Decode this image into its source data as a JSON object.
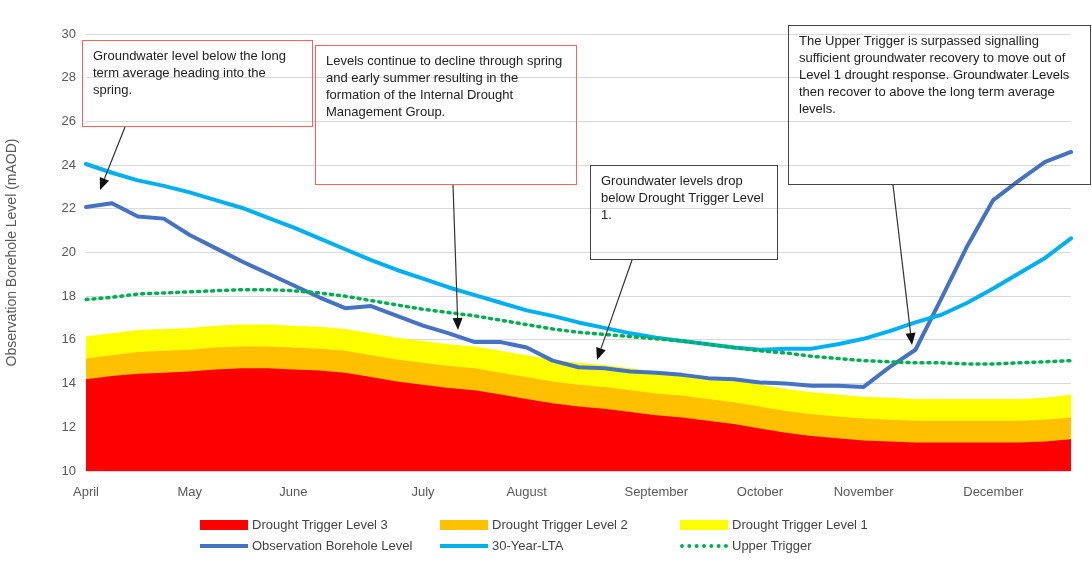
{
  "chart_data": {
    "type": "line",
    "ylabel": "Observation Borehole Level (mAOD)",
    "categories": [
      "April",
      null,
      null,
      null,
      "May",
      null,
      null,
      null,
      "June",
      null,
      null,
      null,
      null,
      "July",
      null,
      null,
      null,
      "August",
      null,
      null,
      null,
      null,
      "September",
      null,
      null,
      null,
      "October",
      null,
      null,
      null,
      "November",
      null,
      null,
      null,
      null,
      "December",
      null,
      null,
      null
    ],
    "ylim": [
      10,
      30
    ],
    "yticks": [
      10,
      12,
      14,
      16,
      18,
      20,
      22,
      24,
      26,
      28,
      30
    ],
    "grid": "y",
    "legend": "bottom",
    "marker": "none",
    "series": [
      {
        "name": "Drought Trigger Level 3",
        "type": "area",
        "color": "#ff0000",
        "values": [
          14.2,
          14.35,
          14.45,
          14.5,
          14.55,
          14.65,
          14.7,
          14.7,
          14.65,
          14.6,
          14.5,
          14.3,
          14.1,
          13.95,
          13.8,
          13.7,
          13.5,
          13.3,
          13.1,
          12.95,
          12.85,
          12.7,
          12.55,
          12.45,
          12.3,
          12.15,
          11.95,
          11.75,
          11.6,
          11.5,
          11.4,
          11.35,
          11.3,
          11.3,
          11.3,
          11.3,
          11.3,
          11.35,
          11.45
        ]
      },
      {
        "name": "Drought Trigger Level 2",
        "type": "area",
        "color": "#ffc000",
        "values": [
          15.15,
          15.3,
          15.45,
          15.5,
          15.55,
          15.65,
          15.7,
          15.7,
          15.65,
          15.6,
          15.5,
          15.3,
          15.1,
          14.95,
          14.8,
          14.7,
          14.5,
          14.3,
          14.1,
          13.95,
          13.85,
          13.7,
          13.55,
          13.45,
          13.3,
          13.15,
          12.95,
          12.75,
          12.6,
          12.5,
          12.4,
          12.35,
          12.3,
          12.3,
          12.3,
          12.3,
          12.3,
          12.35,
          12.45
        ]
      },
      {
        "name": "Drought Trigger Level 1",
        "type": "area",
        "color": "#ffff00",
        "values": [
          16.15,
          16.3,
          16.45,
          16.5,
          16.55,
          16.65,
          16.7,
          16.7,
          16.65,
          16.6,
          16.5,
          16.3,
          16.1,
          15.95,
          15.8,
          15.7,
          15.5,
          15.3,
          15.1,
          14.95,
          14.85,
          14.7,
          14.55,
          14.45,
          14.3,
          14.15,
          13.95,
          13.75,
          13.6,
          13.5,
          13.4,
          13.35,
          13.3,
          13.3,
          13.3,
          13.3,
          13.3,
          13.35,
          13.5
        ]
      },
      {
        "name": "Observation Borehole Level",
        "type": "line",
        "color": "#4472c4",
        "values": [
          22.08,
          22.25,
          21.65,
          21.55,
          20.8,
          20.2,
          19.6,
          19.05,
          18.5,
          17.95,
          17.45,
          17.55,
          17.1,
          16.65,
          16.3,
          15.9,
          15.9,
          15.65,
          15.05,
          14.75,
          14.7,
          14.55,
          14.5,
          14.4,
          14.25,
          14.2,
          14.05,
          14.0,
          13.9,
          13.9,
          13.85,
          14.75,
          15.55,
          17.9,
          20.3,
          22.4,
          23.3,
          24.15,
          24.6
        ]
      },
      {
        "name": "30-Year-LTA",
        "type": "line",
        "color": "#00b0f0",
        "values": [
          24.05,
          23.65,
          23.3,
          23.05,
          22.75,
          22.4,
          22.05,
          21.6,
          21.15,
          20.65,
          20.15,
          19.65,
          19.2,
          18.8,
          18.4,
          18.05,
          17.7,
          17.35,
          17.1,
          16.8,
          16.55,
          16.3,
          16.1,
          15.95,
          15.8,
          15.65,
          15.55,
          15.6,
          15.6,
          15.8,
          16.05,
          16.4,
          16.8,
          17.15,
          17.7,
          18.35,
          19.05,
          19.75,
          20.65
        ]
      },
      {
        "name": "Upper Trigger",
        "type": "line",
        "line_style": "dotted",
        "color": "#00b050",
        "values": [
          17.85,
          17.95,
          18.1,
          18.15,
          18.2,
          18.25,
          18.3,
          18.3,
          18.25,
          18.15,
          18.0,
          17.8,
          17.6,
          17.4,
          17.25,
          17.1,
          16.9,
          16.7,
          16.5,
          16.35,
          16.25,
          16.15,
          16.05,
          15.95,
          15.8,
          15.65,
          15.5,
          15.4,
          15.25,
          15.15,
          15.05,
          15.0,
          14.95,
          14.95,
          14.9,
          14.9,
          14.95,
          15.0,
          15.05
        ]
      }
    ],
    "annotations": [
      "Groundwater level below the long term average heading into the spring.",
      "Levels continue to decline through spring and early summer resulting in the formation of the Internal Drought Management Group.",
      "Groundwater levels drop below Drought Trigger Level 1.",
      "The Upper Trigger is surpassed signalling sufficient groundwater recovery to move out of Level 1 drought response. Groundwater Levels then recover to above the long term average levels."
    ]
  }
}
